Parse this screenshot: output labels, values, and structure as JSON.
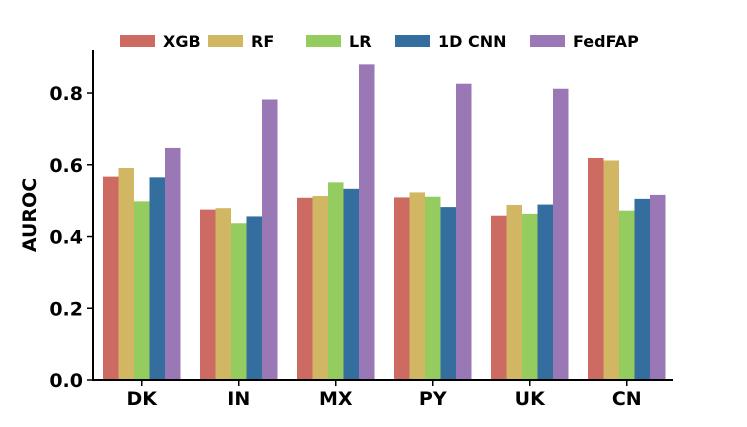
{
  "chart_data": {
    "type": "bar",
    "title": "",
    "xlabel": "",
    "ylabel": "AUROC",
    "ylim": [
      0,
      0.92
    ],
    "yticks": [
      "0.0",
      "0.2",
      "0.4",
      "0.6",
      "0.8"
    ],
    "ytick_values": [
      0,
      0.2,
      0.4,
      0.6,
      0.8
    ],
    "categories": [
      "DK",
      "IN",
      "MX",
      "PY",
      "UK",
      "CN"
    ],
    "series": [
      {
        "name": "XGB",
        "color": "#cd6b63",
        "values": [
          0.567,
          0.475,
          0.508,
          0.509,
          0.458,
          0.619
        ]
      },
      {
        "name": "RF",
        "color": "#d1b764",
        "values": [
          0.591,
          0.479,
          0.513,
          0.523,
          0.488,
          0.612
        ]
      },
      {
        "name": "LR",
        "color": "#95cc5f",
        "values": [
          0.498,
          0.437,
          0.551,
          0.511,
          0.463,
          0.472
        ]
      },
      {
        "name": "1D CNN",
        "color": "#336e9e",
        "values": [
          0.565,
          0.456,
          0.533,
          0.482,
          0.489,
          0.505
        ]
      },
      {
        "name": "FedFAP",
        "color": "#9a78b6",
        "values": [
          0.647,
          0.782,
          0.88,
          0.826,
          0.812,
          0.516
        ]
      }
    ],
    "grid": false,
    "legend_position": "top"
  }
}
